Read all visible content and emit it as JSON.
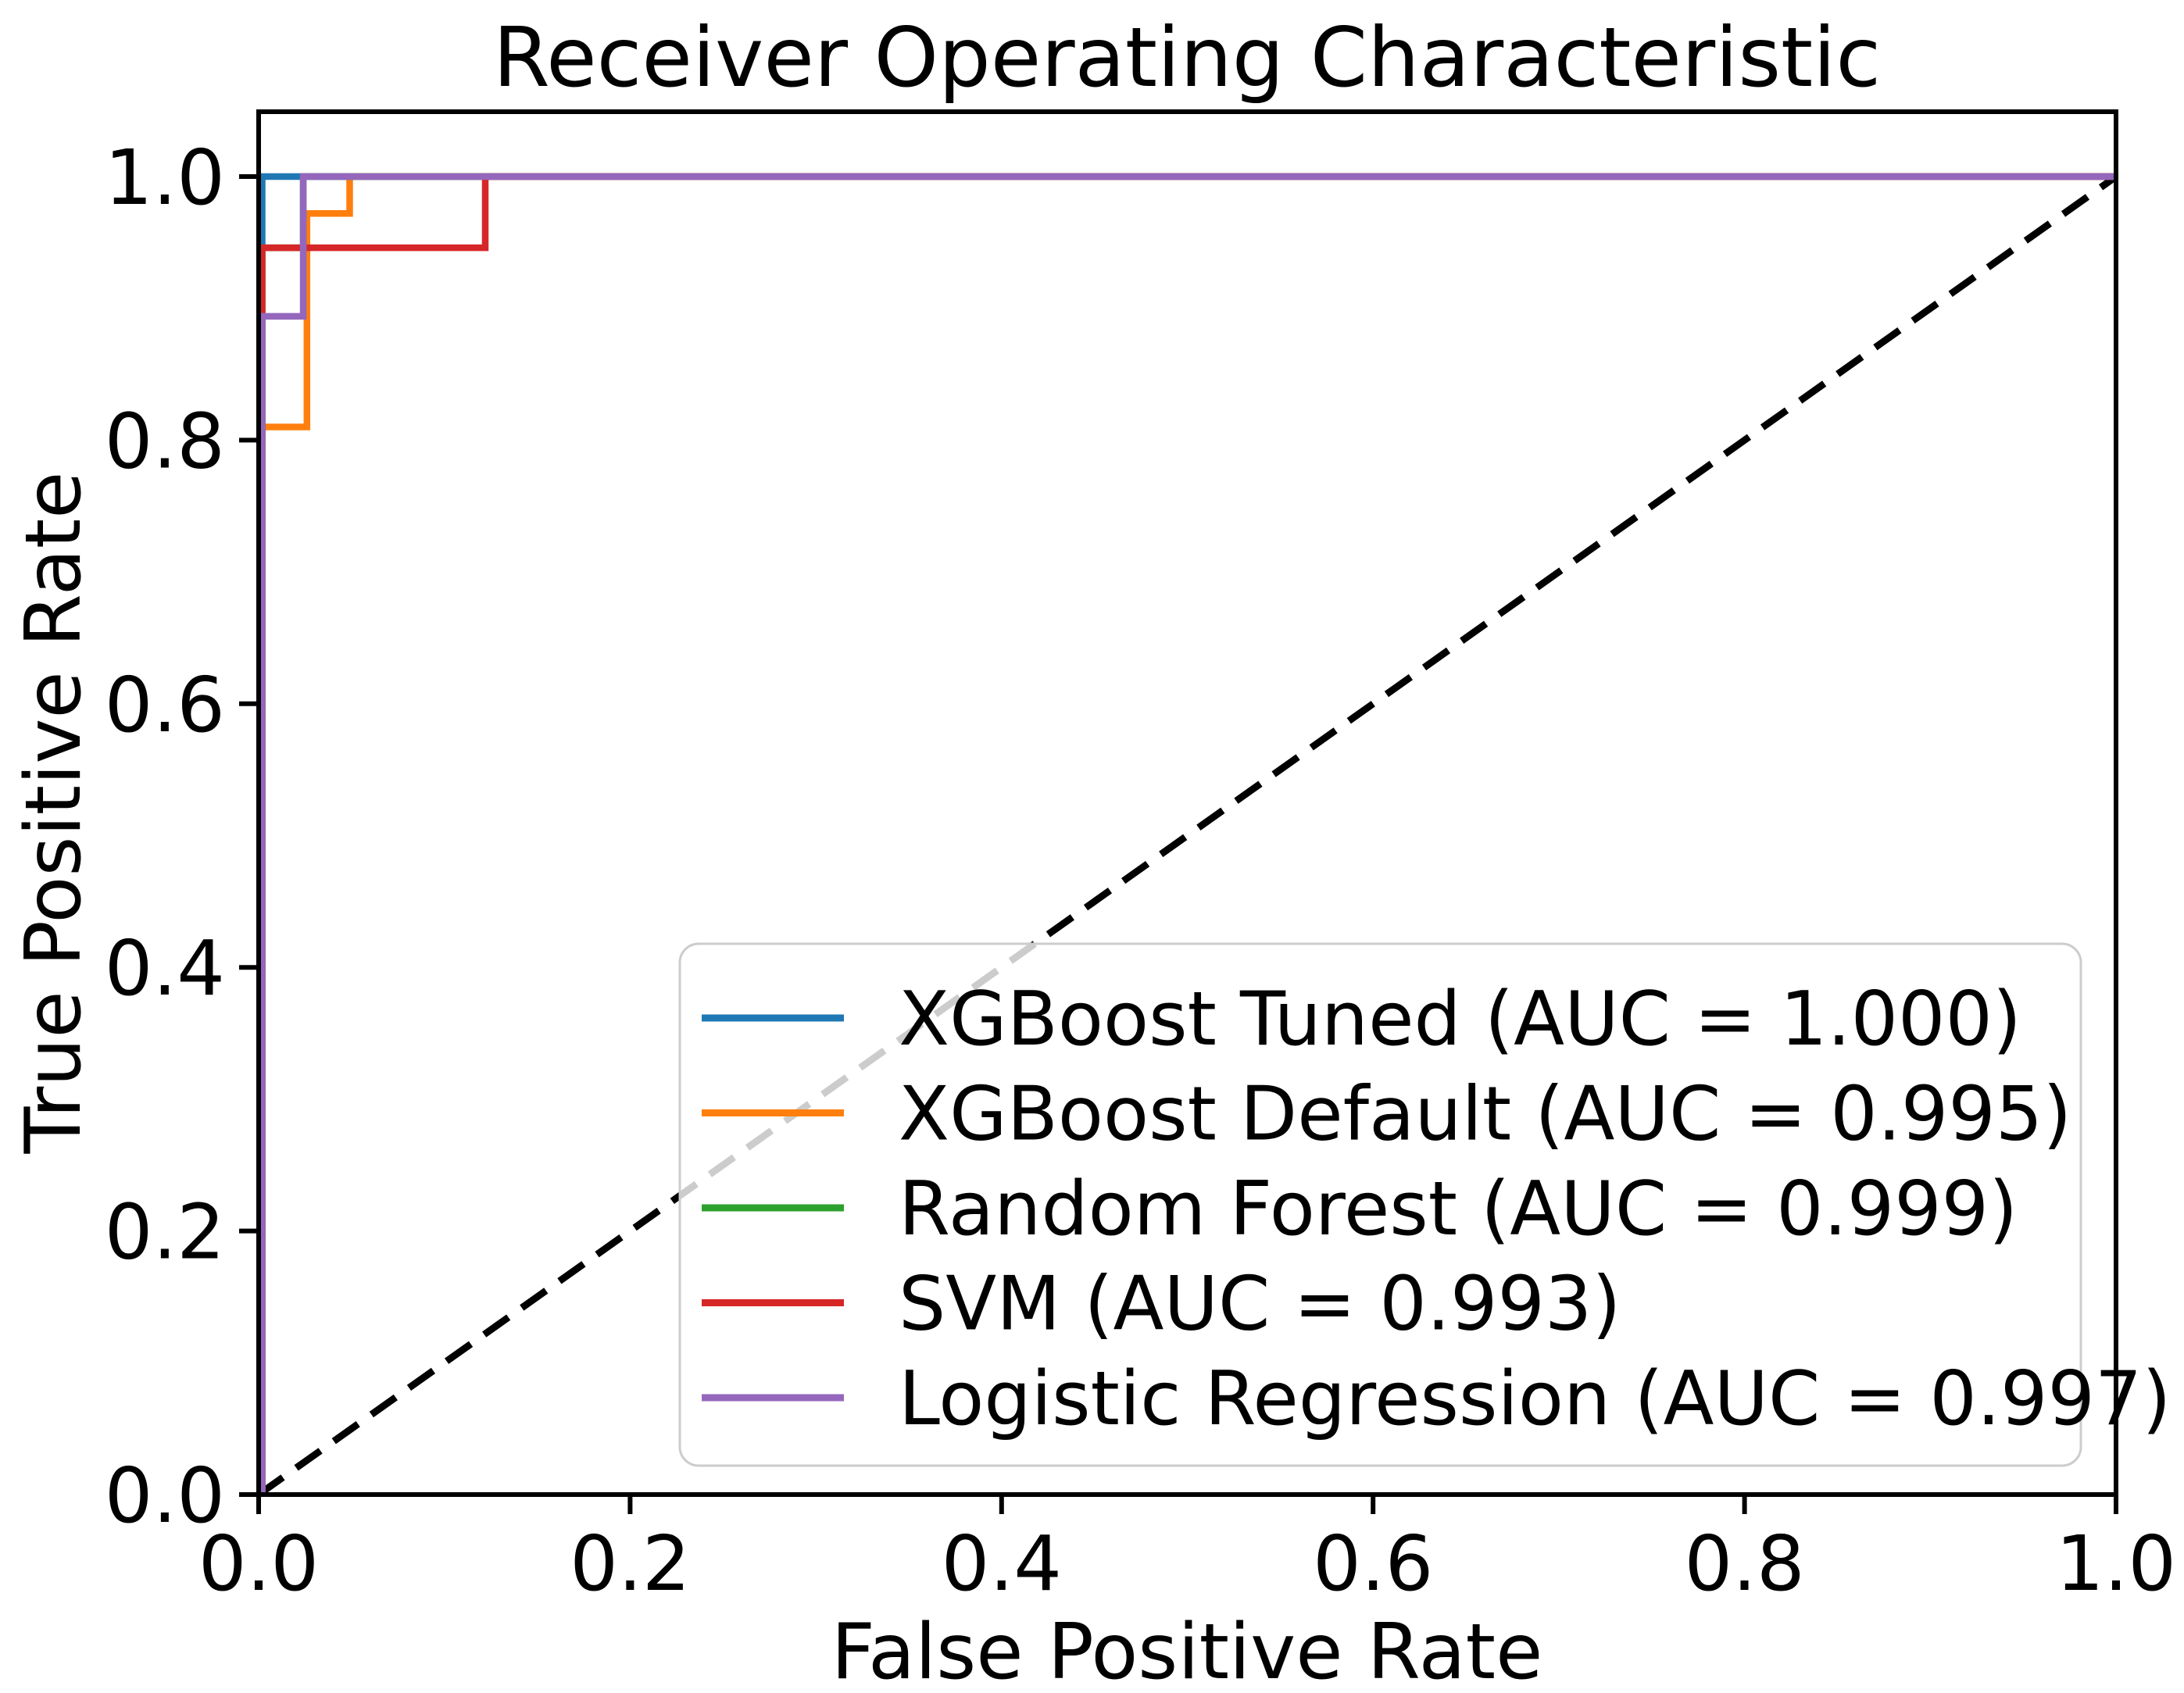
{
  "chart_data": {
    "type": "line",
    "subtype": "roc-curve",
    "title": "Receiver Operating Characteristic",
    "xlabel": "False Positive Rate",
    "ylabel": "True Positive Rate",
    "xlim": [
      0.0,
      1.0
    ],
    "ylim": [
      0.0,
      1.05
    ],
    "grid": false,
    "xticks": [
      "0.0",
      "0.2",
      "0.4",
      "0.6",
      "0.8",
      "1.0"
    ],
    "xtick_values": [
      0.0,
      0.2,
      0.4,
      0.6,
      0.8,
      1.0
    ],
    "yticks": [
      "0.0",
      "0.2",
      "0.4",
      "0.6",
      "0.8",
      "1.0"
    ],
    "ytick_values": [
      0.0,
      0.2,
      0.4,
      0.6,
      0.8,
      1.0
    ],
    "legend": {
      "position": "lower right",
      "border_color": "#cccccc",
      "background_color": "#ffffff",
      "background_opacity": 0.8
    },
    "chance_line": {
      "style": "dashed",
      "color": "#000000",
      "points": [
        [
          0.0,
          0.0
        ],
        [
          1.0,
          1.0
        ]
      ]
    },
    "series": [
      {
        "name": "XGBoost Tuned",
        "auc": "1.000",
        "label": "XGBoost Tuned (AUC = 1.000)",
        "color": "#1f77b4",
        "points": [
          [
            0.0,
            0.0
          ],
          [
            0.0,
            1.0
          ],
          [
            1.0,
            1.0
          ]
        ]
      },
      {
        "name": "XGBoost Default",
        "auc": "0.995",
        "label": "XGBoost Default (AUC = 0.995)",
        "color": "#ff7f0e",
        "points": [
          [
            0.0,
            0.0
          ],
          [
            0.0,
            0.81
          ],
          [
            0.026,
            0.81
          ],
          [
            0.026,
            0.972
          ],
          [
            0.049,
            0.972
          ],
          [
            0.049,
            1.0
          ],
          [
            1.0,
            1.0
          ]
        ]
      },
      {
        "name": "Random Forest",
        "auc": "0.999",
        "label": "Random Forest (AUC = 0.999)",
        "color": "#2ca02c",
        "points": [
          [
            0.0,
            0.0
          ],
          [
            0.0,
            0.946
          ],
          [
            0.024,
            0.946
          ],
          [
            0.024,
            1.0
          ],
          [
            1.0,
            1.0
          ]
        ]
      },
      {
        "name": "SVM",
        "auc": "0.993",
        "label": "SVM (AUC = 0.993)",
        "color": "#d62728",
        "points": [
          [
            0.0,
            0.0
          ],
          [
            0.0,
            0.946
          ],
          [
            0.122,
            0.946
          ],
          [
            0.122,
            1.0
          ],
          [
            1.0,
            1.0
          ]
        ]
      },
      {
        "name": "Logistic Regression",
        "auc": "0.997",
        "label": "Logistic Regression (AUC = 0.997)",
        "color": "#9467bd",
        "points": [
          [
            0.0,
            0.0
          ],
          [
            0.0,
            0.894
          ],
          [
            0.024,
            0.894
          ],
          [
            0.024,
            1.0
          ],
          [
            1.0,
            1.0
          ]
        ]
      }
    ]
  }
}
